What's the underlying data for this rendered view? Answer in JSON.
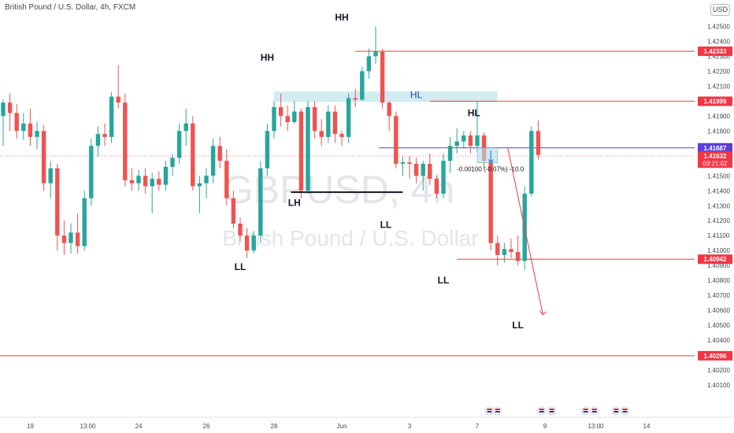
{
  "header": {
    "title": "British Pound / U.S. Dollar, 4h, FXCM",
    "currency": "USD"
  },
  "watermark": {
    "symbol": "GBPUSD, 4h",
    "name": "British Pound / U.S. Dollar"
  },
  "chart_data": {
    "type": "candlestick",
    "symbol": "GBPUSD",
    "timeframe": "4h",
    "exchange": "FXCM",
    "ylim": [
      1.4,
      1.4255
    ],
    "y_ticks": [
      "1.42500",
      "1.42400",
      "1.42300",
      "1.42200",
      "1.42100",
      "1.42000",
      "1.41900",
      "1.41800",
      "1.41700",
      "1.41600",
      "1.41500",
      "1.41400",
      "1.41300",
      "1.41200",
      "1.41100",
      "1.41000",
      "1.40900",
      "1.40800",
      "1.40700",
      "1.40600",
      "1.40500",
      "1.40400",
      "1.40300",
      "1.40200",
      "1.40100"
    ],
    "x_ticks": [
      {
        "label": "19",
        "i": 4
      },
      {
        "label": "13:00",
        "i": 12.5
      },
      {
        "label": "24",
        "i": 20
      },
      {
        "label": "26",
        "i": 30
      },
      {
        "label": "28",
        "i": 40
      },
      {
        "label": "Jun",
        "i": 50
      },
      {
        "label": "3",
        "i": 60
      },
      {
        "label": "7",
        "i": 70
      },
      {
        "label": "9",
        "i": 80
      },
      {
        "label": "13:00",
        "i": 87.5
      },
      {
        "label": "14",
        "i": 95
      }
    ],
    "candles": [
      [
        1.419,
        1.4201,
        1.417,
        1.4199
      ],
      [
        1.4199,
        1.4205,
        1.418,
        1.4192
      ],
      [
        1.4192,
        1.4198,
        1.4175,
        1.418
      ],
      [
        1.418,
        1.4192,
        1.4174,
        1.4185
      ],
      [
        1.4185,
        1.4195,
        1.417,
        1.4176
      ],
      [
        1.4176,
        1.4186,
        1.4168,
        1.418
      ],
      [
        1.418,
        1.4184,
        1.414,
        1.4145
      ],
      [
        1.4145,
        1.416,
        1.4135,
        1.4155
      ],
      [
        1.4155,
        1.4158,
        1.41,
        1.411
      ],
      [
        1.411,
        1.412,
        1.4097,
        1.4105
      ],
      [
        1.4105,
        1.4118,
        1.4098,
        1.4112
      ],
      [
        1.4112,
        1.4125,
        1.4098,
        1.4103
      ],
      [
        1.4103,
        1.414,
        1.41,
        1.4135
      ],
      [
        1.4135,
        1.4175,
        1.413,
        1.417
      ],
      [
        1.417,
        1.4183,
        1.4163,
        1.4178
      ],
      [
        1.4178,
        1.4185,
        1.417,
        1.4176
      ],
      [
        1.4176,
        1.4206,
        1.4172,
        1.4203
      ],
      [
        1.4203,
        1.4224,
        1.4195,
        1.4199
      ],
      [
        1.4199,
        1.4205,
        1.4143,
        1.4147
      ],
      [
        1.4147,
        1.4155,
        1.414,
        1.4145
      ],
      [
        1.4145,
        1.4154,
        1.414,
        1.415
      ],
      [
        1.415,
        1.4155,
        1.4138,
        1.4143
      ],
      [
        1.4143,
        1.4152,
        1.4125,
        1.4148
      ],
      [
        1.4148,
        1.4153,
        1.414,
        1.4144
      ],
      [
        1.4144,
        1.416,
        1.414,
        1.4156
      ],
      [
        1.4156,
        1.4165,
        1.415,
        1.4162
      ],
      [
        1.4162,
        1.4185,
        1.4158,
        1.418
      ],
      [
        1.418,
        1.4195,
        1.417,
        1.4185
      ],
      [
        1.4185,
        1.419,
        1.414,
        1.4143
      ],
      [
        1.4143,
        1.415,
        1.4125,
        1.4145
      ],
      [
        1.4145,
        1.4155,
        1.4135,
        1.415
      ],
      [
        1.415,
        1.4175,
        1.4145,
        1.417
      ],
      [
        1.417,
        1.4176,
        1.4155,
        1.416
      ],
      [
        1.416,
        1.4168,
        1.413,
        1.4135
      ],
      [
        1.4135,
        1.414,
        1.4115,
        1.4118
      ],
      [
        1.4118,
        1.4122,
        1.4106,
        1.411
      ],
      [
        1.411,
        1.4115,
        1.4095,
        1.41
      ],
      [
        1.41,
        1.4113,
        1.4098,
        1.411
      ],
      [
        1.411,
        1.416,
        1.4105,
        1.4155
      ],
      [
        1.4155,
        1.4185,
        1.415,
        1.418
      ],
      [
        1.418,
        1.42,
        1.4175,
        1.4196
      ],
      [
        1.4196,
        1.4205,
        1.4183,
        1.419
      ],
      [
        1.419,
        1.4197,
        1.418,
        1.4186
      ],
      [
        1.4186,
        1.42,
        1.4185,
        1.4193
      ],
      [
        1.4193,
        1.4195,
        1.4135,
        1.414
      ],
      [
        1.414,
        1.42,
        1.4138,
        1.4196
      ],
      [
        1.4196,
        1.42,
        1.4175,
        1.418
      ],
      [
        1.418,
        1.4188,
        1.417,
        1.4176
      ],
      [
        1.4176,
        1.4197,
        1.4172,
        1.4193
      ],
      [
        1.4193,
        1.4197,
        1.4172,
        1.4178
      ],
      [
        1.4178,
        1.418,
        1.417,
        1.4176
      ],
      [
        1.4176,
        1.4205,
        1.4172,
        1.4202
      ],
      [
        1.4202,
        1.4208,
        1.4196,
        1.4201
      ],
      [
        1.4201,
        1.4223,
        1.42,
        1.422
      ],
      [
        1.422,
        1.4235,
        1.4215,
        1.423
      ],
      [
        1.423,
        1.425,
        1.4225,
        1.4233
      ],
      [
        1.4233,
        1.4235,
        1.4195,
        1.4199
      ],
      [
        1.4199,
        1.42,
        1.418,
        1.419
      ],
      [
        1.419,
        1.4193,
        1.4155,
        1.4158
      ],
      [
        1.4158,
        1.4163,
        1.415,
        1.4159
      ],
      [
        1.4159,
        1.4163,
        1.4148,
        1.4158
      ],
      [
        1.4158,
        1.4162,
        1.4145,
        1.415
      ],
      [
        1.415,
        1.416,
        1.414,
        1.4158
      ],
      [
        1.4158,
        1.4165,
        1.4144,
        1.4148
      ],
      [
        1.4148,
        1.415,
        1.4135,
        1.4138
      ],
      [
        1.4138,
        1.4165,
        1.4135,
        1.416
      ],
      [
        1.416,
        1.4176,
        1.4152,
        1.417
      ],
      [
        1.417,
        1.4182,
        1.4165,
        1.4173
      ],
      [
        1.4173,
        1.418,
        1.4168,
        1.4177
      ],
      [
        1.4177,
        1.418,
        1.4165,
        1.417
      ],
      [
        1.417,
        1.42,
        1.4166,
        1.4177
      ],
      [
        1.4177,
        1.4179,
        1.4155,
        1.416
      ],
      [
        1.416,
        1.4162,
        1.41,
        1.4105
      ],
      [
        1.4105,
        1.411,
        1.409,
        1.4097
      ],
      [
        1.4097,
        1.4105,
        1.4092,
        1.4101
      ],
      [
        1.4101,
        1.4108,
        1.4095,
        1.4099
      ],
      [
        1.4099,
        1.411,
        1.409,
        1.4093
      ],
      [
        1.4093,
        1.4143,
        1.4087,
        1.4138
      ],
      [
        1.4138,
        1.4183,
        1.4136,
        1.418
      ],
      [
        1.418,
        1.4187,
        1.4161,
        1.4164
      ]
    ],
    "annotations": [
      {
        "text": "HH",
        "i": 50,
        "y": 1.4254
      },
      {
        "text": "HH",
        "i": 39,
        "y": 1.4227
      },
      {
        "text": "HL",
        "i": 61,
        "y": 1.4202
      },
      {
        "text": "HL",
        "i": 69.5,
        "y": 1.419
      },
      {
        "text": "LH",
        "i": 43,
        "y": 1.413
      },
      {
        "text": "LL",
        "i": 56.5,
        "y": 1.4115
      },
      {
        "text": "LL",
        "i": 35,
        "y": 1.4087
      },
      {
        "text": "LL",
        "i": 65,
        "y": 1.4078
      },
      {
        "text": "LL",
        "i": 76,
        "y": 1.4048
      }
    ],
    "levels": [
      {
        "value": 1.42333,
        "label": "1.42333",
        "color": "#f23645"
      },
      {
        "value": 1.41999,
        "label": "1.41999",
        "color": "#f23645"
      },
      {
        "value": 1.41687,
        "label": "1.41687",
        "color": "#5b3fd6"
      },
      {
        "value": 1.40942,
        "label": "1.40942",
        "color": "#f23645"
      },
      {
        "value": 1.40296,
        "label": "1.40296",
        "color": "#f23645"
      }
    ],
    "current_price": {
      "value": 1.41632,
      "label": "1.41632",
      "countdown": "03:21:02",
      "color": "#f23645"
    },
    "measure_label": "-0.00100 (-0.07%) -10.0",
    "colors": {
      "up": "#26a69a",
      "down": "#ef5350",
      "zone": "#b2e0ea",
      "bg": "#ffffff"
    }
  }
}
